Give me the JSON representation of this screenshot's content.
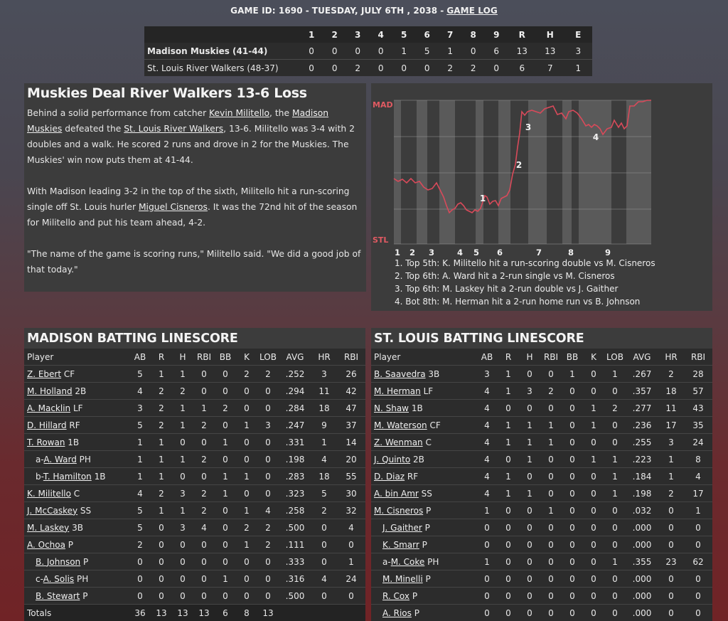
{
  "header": {
    "game_id": "GAME ID: 1690",
    "date": "TUESDAY, JULY 6TH , 2038",
    "log_link": "GAME LOG"
  },
  "linescore": {
    "innings": [
      "1",
      "2",
      "3",
      "4",
      "5",
      "6",
      "7",
      "8",
      "9"
    ],
    "totals_headers": [
      "R",
      "H",
      "E"
    ],
    "teams": [
      {
        "name": "Madison Muskies (41-44)",
        "bold": true,
        "innings": [
          "0",
          "0",
          "0",
          "0",
          "1",
          "5",
          "1",
          "0",
          "6"
        ],
        "totals": [
          "13",
          "13",
          "3"
        ]
      },
      {
        "name": "St. Louis River Walkers (48-37)",
        "bold": false,
        "innings": [
          "0",
          "0",
          "2",
          "0",
          "0",
          "0",
          "2",
          "2",
          "0"
        ],
        "totals": [
          "6",
          "7",
          "1"
        ]
      }
    ]
  },
  "recap": {
    "headline": "Muskies Deal River Walkers 13-6 Loss",
    "p1": [
      "Behind a solid performance from catcher ",
      {
        "link": "Kevin Militello"
      },
      ", the ",
      {
        "link": "Madison Muskies"
      },
      " defeated the ",
      {
        "link": "St. Louis River Walkers"
      },
      ", 13-6. Militello was 3-4 with 2 doubles and a walk. He scored 2 runs and drove in 2 for the Muskies. The Muskies' win now puts them at 41-44."
    ],
    "p2": [
      "With Madison leading 3-2 in the top of the sixth, Militello hit a run-scoring single off St. Louis hurler ",
      {
        "link": "Miguel Cisneros"
      },
      ". It was the 72nd hit of the season for Militello and put his team ahead, 4-2."
    ],
    "p3": [
      "\"The name of the game is scoring runs,\" Militello said. \"We did a good job of that today.\""
    ]
  },
  "win_prob_chart": {
    "top_label": "MAD",
    "bottom_label": "STL",
    "inning_labels": [
      "1",
      "2",
      "3",
      "4",
      "5",
      "6",
      "7",
      "8",
      "9"
    ],
    "line_color": "#d84a5a",
    "events": [
      "1. Top 5th: K. Militello hit a run-scoring double vs M. Cisneros",
      "2. Top 6th: A. Ward hit a 2-run single vs M. Cisneros",
      "3. Top 6th: M. Laskey hit a 2-run double vs J. Gaither",
      "4. Bot 8th: M. Herman hit a 2-run home run vs B. Johnson"
    ]
  },
  "madison": {
    "title": "MADISON BATTING LINESCORE",
    "headers": [
      "Player",
      "AB",
      "R",
      "H",
      "RBI",
      "BB",
      "K",
      "LOB",
      "AVG",
      "HR",
      "RBI"
    ],
    "rows": [
      {
        "prefix": "",
        "name": "Z. Ebert",
        "pos": "CF",
        "stats": [
          "5",
          "1",
          "1",
          "0",
          "0",
          "2",
          "2",
          ".252",
          "3",
          "26"
        ]
      },
      {
        "prefix": "",
        "name": "M. Holland",
        "pos": "2B",
        "stats": [
          "4",
          "2",
          "2",
          "0",
          "0",
          "0",
          "0",
          ".294",
          "11",
          "42"
        ]
      },
      {
        "prefix": "",
        "name": "A. Macklin",
        "pos": "LF",
        "stats": [
          "3",
          "2",
          "1",
          "1",
          "2",
          "0",
          "0",
          ".284",
          "18",
          "47"
        ]
      },
      {
        "prefix": "",
        "name": "D. Hillard",
        "pos": "RF",
        "stats": [
          "5",
          "2",
          "1",
          "2",
          "0",
          "1",
          "3",
          ".247",
          "9",
          "37"
        ]
      },
      {
        "prefix": "",
        "name": "T. Rowan",
        "pos": "1B",
        "stats": [
          "1",
          "1",
          "0",
          "0",
          "1",
          "0",
          "0",
          ".331",
          "1",
          "14"
        ]
      },
      {
        "prefix": "a-",
        "name": "A. Ward",
        "pos": "PH",
        "indent": true,
        "stats": [
          "1",
          "1",
          "1",
          "2",
          "0",
          "0",
          "0",
          ".198",
          "4",
          "20"
        ]
      },
      {
        "prefix": "b-",
        "name": "T. Hamilton",
        "pos": "1B",
        "indent": true,
        "stats": [
          "1",
          "1",
          "0",
          "0",
          "1",
          "1",
          "0",
          ".283",
          "18",
          "55"
        ]
      },
      {
        "prefix": "",
        "name": "K. Militello",
        "pos": "C",
        "stats": [
          "4",
          "2",
          "3",
          "2",
          "1",
          "0",
          "0",
          ".323",
          "5",
          "30"
        ]
      },
      {
        "prefix": "",
        "name": "J. McCaskey",
        "pos": "SS",
        "stats": [
          "5",
          "1",
          "1",
          "2",
          "0",
          "1",
          "4",
          ".258",
          "2",
          "32"
        ]
      },
      {
        "prefix": "",
        "name": "M. Laskey",
        "pos": "3B",
        "stats": [
          "5",
          "0",
          "3",
          "4",
          "0",
          "2",
          "2",
          ".500",
          "0",
          "4"
        ]
      },
      {
        "prefix": "",
        "name": "A. Ochoa",
        "pos": "P",
        "stats": [
          "2",
          "0",
          "0",
          "0",
          "0",
          "1",
          "2",
          ".111",
          "0",
          "0"
        ]
      },
      {
        "prefix": "",
        "name": "B. Johnson",
        "pos": "P",
        "indent": true,
        "stats": [
          "0",
          "0",
          "0",
          "0",
          "0",
          "0",
          "0",
          ".333",
          "0",
          "1"
        ]
      },
      {
        "prefix": "c-",
        "name": "A. Solis",
        "pos": "PH",
        "indent": true,
        "stats": [
          "0",
          "0",
          "0",
          "0",
          "1",
          "0",
          "0",
          ".316",
          "4",
          "24"
        ]
      },
      {
        "prefix": "",
        "name": "B. Stewart",
        "pos": "P",
        "indent": true,
        "stats": [
          "0",
          "0",
          "0",
          "0",
          "0",
          "0",
          "0",
          ".500",
          "0",
          "0"
        ]
      }
    ],
    "totals_label": "Totals",
    "totals": [
      "36",
      "13",
      "13",
      "13",
      "6",
      "8",
      "13",
      "",
      "",
      ""
    ]
  },
  "stlouis": {
    "title": "ST. LOUIS BATTING LINESCORE",
    "headers": [
      "Player",
      "AB",
      "R",
      "H",
      "RBI",
      "BB",
      "K",
      "LOB",
      "AVG",
      "HR",
      "RBI"
    ],
    "rows": [
      {
        "prefix": "",
        "name": "B. Saavedra",
        "pos": "3B",
        "stats": [
          "3",
          "1",
          "0",
          "0",
          "1",
          "0",
          "1",
          ".267",
          "2",
          "28"
        ]
      },
      {
        "prefix": "",
        "name": "M. Herman",
        "pos": "LF",
        "stats": [
          "4",
          "1",
          "3",
          "2",
          "0",
          "0",
          "0",
          ".357",
          "18",
          "57"
        ]
      },
      {
        "prefix": "",
        "name": "N. Shaw",
        "pos": "1B",
        "stats": [
          "4",
          "0",
          "0",
          "0",
          "0",
          "1",
          "2",
          ".277",
          "11",
          "43"
        ]
      },
      {
        "prefix": "",
        "name": "M. Waterson",
        "pos": "CF",
        "stats": [
          "4",
          "1",
          "1",
          "1",
          "0",
          "1",
          "0",
          ".236",
          "17",
          "35"
        ]
      },
      {
        "prefix": "",
        "name": "Z. Wenman",
        "pos": "C",
        "stats": [
          "4",
          "1",
          "1",
          "1",
          "0",
          "0",
          "0",
          ".255",
          "3",
          "24"
        ]
      },
      {
        "prefix": "",
        "name": "J. Quinto",
        "pos": "2B",
        "stats": [
          "4",
          "0",
          "1",
          "0",
          "0",
          "1",
          "1",
          ".223",
          "1",
          "8"
        ]
      },
      {
        "prefix": "",
        "name": "D. Diaz",
        "pos": "RF",
        "stats": [
          "4",
          "1",
          "0",
          "0",
          "0",
          "0",
          "1",
          ".184",
          "1",
          "4"
        ]
      },
      {
        "prefix": "",
        "name": "A. bin Amr",
        "pos": "SS",
        "stats": [
          "4",
          "1",
          "1",
          "0",
          "0",
          "0",
          "1",
          ".198",
          "2",
          "17"
        ]
      },
      {
        "prefix": "",
        "name": "M. Cisneros",
        "pos": "P",
        "stats": [
          "1",
          "0",
          "0",
          "1",
          "0",
          "0",
          "0",
          ".032",
          "0",
          "1"
        ]
      },
      {
        "prefix": "",
        "name": "J. Gaither",
        "pos": "P",
        "indent": true,
        "stats": [
          "0",
          "0",
          "0",
          "0",
          "0",
          "0",
          "0",
          ".000",
          "0",
          "0"
        ]
      },
      {
        "prefix": "",
        "name": "K. Smarr",
        "pos": "P",
        "indent": true,
        "stats": [
          "0",
          "0",
          "0",
          "0",
          "0",
          "0",
          "0",
          ".000",
          "0",
          "0"
        ]
      },
      {
        "prefix": "a-",
        "name": "M. Coke",
        "pos": "PH",
        "indent": true,
        "stats": [
          "1",
          "0",
          "0",
          "0",
          "0",
          "0",
          "1",
          ".355",
          "23",
          "62"
        ]
      },
      {
        "prefix": "",
        "name": "M. Minelli",
        "pos": "P",
        "indent": true,
        "stats": [
          "0",
          "0",
          "0",
          "0",
          "0",
          "0",
          "0",
          ".000",
          "0",
          "0"
        ]
      },
      {
        "prefix": "",
        "name": "R. Cox",
        "pos": "P",
        "indent": true,
        "stats": [
          "0",
          "0",
          "0",
          "0",
          "0",
          "0",
          "0",
          ".000",
          "0",
          "0"
        ]
      },
      {
        "prefix": "",
        "name": "A. Rios",
        "pos": "P",
        "indent": true,
        "stats": [
          "0",
          "0",
          "0",
          "0",
          "0",
          "0",
          "0",
          ".000",
          "0",
          "0"
        ]
      }
    ]
  }
}
